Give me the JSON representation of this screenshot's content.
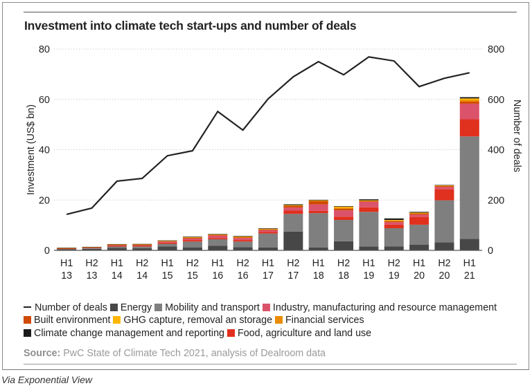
{
  "title": "Investment into climate tech start-ups and number of deals",
  "source_label": "Source:",
  "source_text": " PwC State of Climate Tech 2021, analysis of Dealroom data",
  "via": "Via Exponential View",
  "legend": [
    [
      {
        "key": "deals",
        "label": "Number of deals",
        "type": "line",
        "color": "#222222"
      },
      {
        "key": "energy",
        "label": "Energy",
        "type": "box",
        "color": "#474747"
      },
      {
        "key": "mobility",
        "label": "Mobility and transport",
        "type": "box",
        "color": "#7f7f7f"
      },
      {
        "key": "industry",
        "label": "Industry, manufacturing and resource management",
        "type": "box",
        "color": "#db536a"
      }
    ],
    [
      {
        "key": "built",
        "label": "Built environment",
        "type": "box",
        "color": "#d04a02"
      },
      {
        "key": "ghg",
        "label": "GHG capture, removal an storage",
        "type": "box",
        "color": "#ffb600"
      },
      {
        "key": "financial",
        "label": "Financial services",
        "type": "box",
        "color": "#eb8c00"
      }
    ],
    [
      {
        "key": "climate",
        "label": "Climate change management and reporting",
        "type": "box",
        "color": "#1a1a1a"
      },
      {
        "key": "food",
        "label": "Food, agriculture and land use",
        "type": "box",
        "color": "#e0301e"
      }
    ]
  ],
  "chart_data": {
    "type": "bar",
    "stacked": true,
    "title": "Investment into climate tech start-ups and number of deals",
    "xlabel": "",
    "ylabel": "Investment (US$ bn)",
    "y2label": "Number of deals",
    "ylim": [
      0,
      80
    ],
    "y2lim": [
      0,
      800
    ],
    "yticks": [
      0,
      20,
      40,
      60,
      80
    ],
    "y2ticks": [
      0,
      200,
      400,
      600,
      800
    ],
    "grid": true,
    "legend_position": "bottom",
    "categories": [
      [
        "H1",
        "13"
      ],
      [
        "H2",
        "13"
      ],
      [
        "H1",
        "14"
      ],
      [
        "H2",
        "14"
      ],
      [
        "H1",
        "15"
      ],
      [
        "H2",
        "15"
      ],
      [
        "H1",
        "16"
      ],
      [
        "H2",
        "16"
      ],
      [
        "H1",
        "17"
      ],
      [
        "H2",
        "17"
      ],
      [
        "H1",
        "18"
      ],
      [
        "H2",
        "18"
      ],
      [
        "H1",
        "19"
      ],
      [
        "H2",
        "19"
      ],
      [
        "H1",
        "20"
      ],
      [
        "H2",
        "20"
      ],
      [
        "H1",
        "21"
      ]
    ],
    "series": [
      {
        "name": "Energy",
        "key": "energy",
        "color": "#474747",
        "axis": "left",
        "values": [
          0.4,
          0.6,
          1.0,
          0.9,
          1.5,
          1.2,
          1.8,
          1.3,
          1.1,
          7.5,
          1.1,
          3.6,
          1.5,
          1.6,
          2.3,
          3.2,
          4.6
        ]
      },
      {
        "name": "Mobility and transport",
        "key": "mobility",
        "color": "#7f7f7f",
        "axis": "left",
        "values": [
          0.2,
          0.3,
          0.5,
          0.6,
          1.1,
          2.3,
          2.6,
          2.2,
          5.6,
          7.0,
          13.7,
          8.5,
          13.8,
          7.2,
          7.9,
          16.7,
          40.7
        ]
      },
      {
        "name": "Food, agriculture and land use",
        "key": "food",
        "color": "#e0301e",
        "axis": "left",
        "values": [
          0.1,
          0.2,
          0.3,
          0.3,
          0.5,
          0.6,
          0.5,
          0.6,
          0.6,
          1.3,
          0.9,
          1.3,
          1.8,
          1.4,
          3.1,
          4.3,
          6.8
        ]
      },
      {
        "name": "Industry, manufacturing and resource management",
        "key": "industry",
        "color": "#db536a",
        "axis": "left",
        "values": [
          0.1,
          0.1,
          0.3,
          0.3,
          0.4,
          0.6,
          1.0,
          0.8,
          0.7,
          1.2,
          2.6,
          2.5,
          2.2,
          1.0,
          0.9,
          1.0,
          6.2
        ]
      },
      {
        "name": "Built environment",
        "key": "built",
        "color": "#d04a02",
        "axis": "left",
        "values": [
          0.05,
          0.05,
          0.1,
          0.1,
          0.2,
          0.3,
          0.3,
          0.3,
          0.3,
          0.7,
          1.3,
          0.6,
          0.3,
          0.4,
          0.4,
          0.4,
          0.8
        ]
      },
      {
        "name": "Financial services",
        "key": "financial",
        "color": "#eb8c00",
        "axis": "left",
        "values": [
          0.1,
          0.05,
          0.1,
          0.2,
          0.1,
          0.2,
          0.1,
          0.2,
          0.2,
          0.2,
          0.2,
          0.5,
          0.2,
          0.3,
          0.3,
          0.2,
          0.7
        ]
      },
      {
        "name": "GHG capture, removal an storage",
        "key": "ghg",
        "color": "#ffb600",
        "axis": "left",
        "values": [
          0.05,
          0.05,
          0.1,
          0.1,
          0.05,
          0.1,
          0.1,
          0.1,
          0.1,
          0.1,
          0.1,
          0.4,
          0.1,
          0.2,
          0.1,
          0.1,
          0.6
        ]
      },
      {
        "name": "Climate change management and reporting",
        "key": "climate",
        "color": "#1a1a1a",
        "axis": "left",
        "values": [
          0.05,
          0.05,
          0.1,
          0.05,
          0.1,
          0.2,
          0.1,
          0.2,
          0.2,
          0.3,
          0.2,
          0.2,
          0.4,
          0.6,
          0.3,
          0.1,
          0.5
        ]
      },
      {
        "name": "Number of deals",
        "key": "deals",
        "type": "line",
        "color": "#222222",
        "axis": "right",
        "values": [
          143,
          168,
          275,
          286,
          376,
          396,
          552,
          478,
          602,
          690,
          750,
          698,
          769,
          753,
          651,
          684,
          706
        ]
      }
    ]
  }
}
